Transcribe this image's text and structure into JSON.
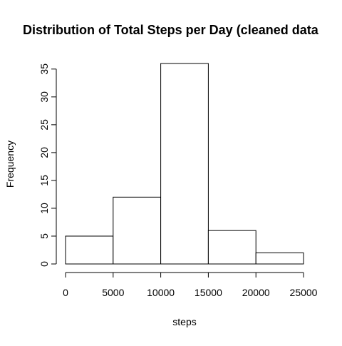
{
  "chart_data": {
    "type": "histogram",
    "title": "Distribution of Total Steps per Day (cleaned data",
    "xlabel": "steps",
    "ylabel": "Frequency",
    "bin_edges": [
      0,
      5000,
      10000,
      15000,
      20000,
      25000
    ],
    "values": [
      5,
      12,
      36,
      6,
      2
    ],
    "x_ticks": [
      0,
      5000,
      10000,
      15000,
      20000,
      25000
    ],
    "x_tick_labels": [
      "0",
      "5000",
      "10000",
      "15000",
      "20000",
      "25000"
    ],
    "y_ticks": [
      0,
      5,
      10,
      15,
      20,
      25,
      30,
      35
    ],
    "y_tick_labels": [
      "0",
      "5",
      "10",
      "15",
      "20",
      "25",
      "30",
      "35"
    ],
    "xlim": [
      0,
      25000
    ],
    "ylim": [
      0,
      36
    ],
    "grid": false,
    "colors": {
      "bar_fill": "#ffffff",
      "bar_stroke": "#000000",
      "axis": "#000000"
    }
  }
}
